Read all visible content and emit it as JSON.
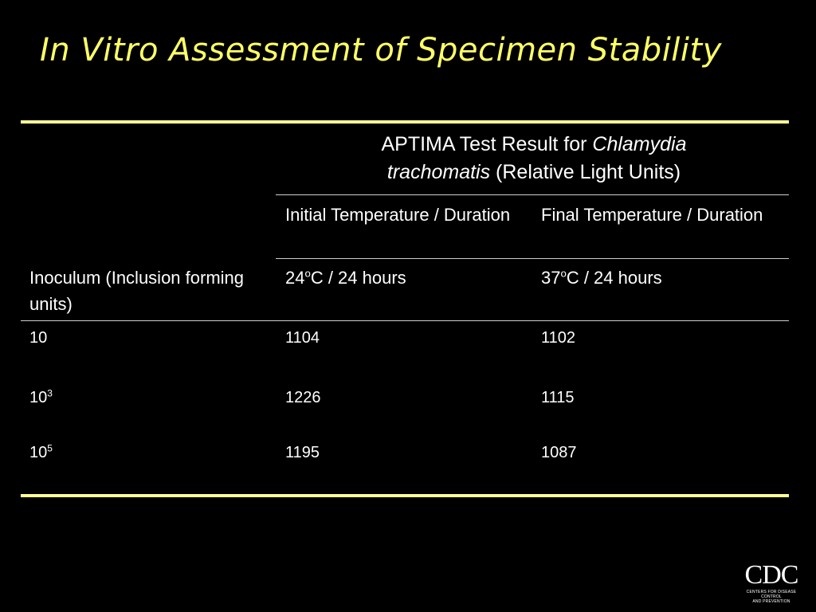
{
  "slide": {
    "title": "In Vitro Assessment of Specimen Stability"
  },
  "table": {
    "header": {
      "main_prefix": "APTIMA Test Result for ",
      "main_organism_italic_1": "Chlamydia",
      "main_organism_italic_2": "trachomatis",
      "main_suffix": " (Relative Light Units)",
      "initial": "Initial Temperature / Duration",
      "final": "Final Temperature / Duration",
      "inoculum": "Inoculum (Inclusion forming units)",
      "initial_value_num": "24",
      "initial_value_deg": "o",
      "initial_value_rest": "C / 24 hours",
      "final_value_num": "37",
      "final_value_deg": "o",
      "final_value_rest": "C / 24 hours"
    },
    "rows": [
      {
        "inoculum_base": "10",
        "inoculum_exp": "",
        "initial": "1104",
        "final": "1102"
      },
      {
        "inoculum_base": "10",
        "inoculum_exp": "3",
        "initial": "1226",
        "final": "1115"
      },
      {
        "inoculum_base": "10",
        "inoculum_exp": "5",
        "initial": "1195",
        "final": "1087"
      }
    ]
  },
  "logo": {
    "main": "CDC",
    "sub_line1": "CENTERS FOR DISEASE CONTROL",
    "sub_line2": "AND PREVENTION"
  }
}
